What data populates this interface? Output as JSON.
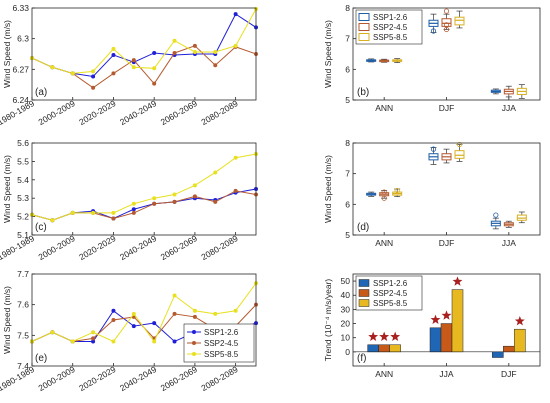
{
  "chart_data": [
    {
      "id": "a",
      "type": "line",
      "panel_label": "(a)",
      "ylabel": "Wind Speed (m/s)",
      "x": [
        1985,
        1995,
        2005,
        2015,
        2025,
        2035,
        2045,
        2055,
        2065,
        2075,
        2085,
        2095
      ],
      "xticks": [
        1985,
        2005,
        2025,
        2045,
        2065,
        2085
      ],
      "xticklabels": [
        "1980-1989",
        "2000-2009",
        "2020-2029",
        "2040-2049",
        "2060-2069",
        "2080-2089"
      ],
      "xlim": [
        1985,
        2095
      ],
      "ylim": [
        6.24,
        6.33
      ],
      "yticks": [
        6.24,
        6.27,
        6.3,
        6.33
      ],
      "yticklabels": [
        "6.24",
        "6.27",
        "6.3",
        "6.33"
      ],
      "legend": null,
      "series": [
        {
          "values": [
            6.281,
            6.272,
            6.266,
            6.263,
            6.284,
            6.277,
            6.286,
            6.284,
            6.285,
            6.285,
            6.324,
            6.311
          ],
          "color": "#1f1fd8"
        },
        {
          "values": [
            6.281,
            6.272,
            6.266,
            6.252,
            6.266,
            6.279,
            6.256,
            6.286,
            6.293,
            6.274,
            6.292,
            6.285
          ],
          "color": "#b55a30"
        },
        {
          "values": [
            6.281,
            6.272,
            6.266,
            6.268,
            6.29,
            6.272,
            6.271,
            6.298,
            6.287,
            6.287,
            6.293,
            6.329
          ],
          "color": "#e8e020"
        }
      ]
    },
    {
      "id": "b",
      "type": "box",
      "panel_label": "(b)",
      "ylabel": "Wind Speed (m/s)",
      "categories": [
        "ANN",
        "DJF",
        "JJA"
      ],
      "ylim": [
        5,
        8
      ],
      "yticks": [
        5,
        6,
        7,
        8
      ],
      "yticklabels": [
        "5",
        "6",
        "7",
        "8"
      ],
      "legend": [
        "SSP1-2.6",
        "SSP2-4.5",
        "SSP5-8.5"
      ],
      "series": [
        {
          "name": "SSP1-2.6",
          "color": "#1f5fa8",
          "boxes": [
            {
              "min": 6.24,
              "q1": 6.27,
              "median": 6.29,
              "q3": 6.31,
              "max": 6.34,
              "outliers": []
            },
            {
              "min": 7.2,
              "q1": 7.4,
              "median": 7.5,
              "q3": 7.6,
              "max": 7.8,
              "outliers": [
                7.25
              ]
            },
            {
              "min": 5.2,
              "q1": 5.25,
              "median": 5.28,
              "q3": 5.32,
              "max": 5.36,
              "outliers": []
            }
          ]
        },
        {
          "name": "SSP2-4.5",
          "color": "#b55a30",
          "boxes": [
            {
              "min": 6.23,
              "q1": 6.26,
              "median": 6.28,
              "q3": 6.3,
              "max": 6.33,
              "outliers": []
            },
            {
              "min": 7.3,
              "q1": 7.4,
              "median": 7.5,
              "q3": 7.65,
              "max": 7.8,
              "outliers": [
                7.3,
                7.45,
                7.9
              ]
            },
            {
              "min": 5.1,
              "q1": 5.2,
              "median": 5.28,
              "q3": 5.35,
              "max": 5.45,
              "outliers": []
            }
          ]
        },
        {
          "name": "SSP5-8.5",
          "color": "#d8b020",
          "boxes": [
            {
              "min": 6.22,
              "q1": 6.26,
              "median": 6.28,
              "q3": 6.31,
              "max": 6.35,
              "outliers": []
            },
            {
              "min": 7.35,
              "q1": 7.45,
              "median": 7.6,
              "q3": 7.7,
              "max": 7.9,
              "outliers": []
            },
            {
              "min": 5.05,
              "q1": 5.18,
              "median": 5.28,
              "q3": 5.38,
              "max": 5.5,
              "outliers": []
            }
          ]
        }
      ]
    },
    {
      "id": "c",
      "type": "line",
      "panel_label": "(c)",
      "ylabel": "Wind Speed (m/s)",
      "x": [
        1985,
        1995,
        2005,
        2015,
        2025,
        2035,
        2045,
        2055,
        2065,
        2075,
        2085,
        2095
      ],
      "xticks": [
        1985,
        2005,
        2025,
        2045,
        2065,
        2085
      ],
      "xticklabels": [
        "1980-1989",
        "2000-2009",
        "2020-2029",
        "2040-2049",
        "2060-2069",
        "2080-2089"
      ],
      "xlim": [
        1985,
        2095
      ],
      "ylim": [
        5.1,
        5.6
      ],
      "yticks": [
        5.1,
        5.2,
        5.3,
        5.4,
        5.5,
        5.6
      ],
      "yticklabels": [
        "5.1",
        "5.2",
        "5.3",
        "5.4",
        "5.5",
        "5.6"
      ],
      "legend": null,
      "series": [
        {
          "values": [
            5.21,
            5.18,
            5.22,
            5.23,
            5.19,
            5.24,
            5.27,
            5.28,
            5.3,
            5.29,
            5.33,
            5.35
          ],
          "color": "#1f1fd8"
        },
        {
          "values": [
            5.21,
            5.18,
            5.22,
            5.22,
            5.19,
            5.22,
            5.27,
            5.28,
            5.31,
            5.28,
            5.34,
            5.32
          ],
          "color": "#b55a30"
        },
        {
          "values": [
            5.21,
            5.18,
            5.22,
            5.22,
            5.22,
            5.27,
            5.3,
            5.32,
            5.37,
            5.44,
            5.52,
            5.54
          ],
          "color": "#e8e020"
        }
      ]
    },
    {
      "id": "d",
      "type": "box",
      "panel_label": "(d)",
      "ylabel": "Wind Speed (m/s)",
      "categories": [
        "ANN",
        "DJF",
        "JJA"
      ],
      "ylim": [
        5,
        8
      ],
      "yticks": [
        5,
        6,
        7,
        8
      ],
      "yticklabels": [
        "5",
        "6",
        "7",
        "8"
      ],
      "legend": null,
      "series": [
        {
          "name": "SSP1-2.6",
          "color": "#1f5fa8",
          "boxes": [
            {
              "min": 6.26,
              "q1": 6.3,
              "median": 6.33,
              "q3": 6.36,
              "max": 6.4,
              "outliers": []
            },
            {
              "min": 7.3,
              "q1": 7.45,
              "median": 7.55,
              "q3": 7.65,
              "max": 7.85,
              "outliers": [
                7.8
              ]
            },
            {
              "min": 5.2,
              "q1": 5.3,
              "median": 5.38,
              "q3": 5.45,
              "max": 5.55,
              "outliers": [
                5.65
              ]
            }
          ]
        },
        {
          "name": "SSP2-4.5",
          "color": "#b55a30",
          "boxes": [
            {
              "min": 6.2,
              "q1": 6.28,
              "median": 6.33,
              "q3": 6.38,
              "max": 6.45,
              "outliers": [
                6.2,
                6.4
              ]
            },
            {
              "min": 7.35,
              "q1": 7.45,
              "median": 7.55,
              "q3": 7.65,
              "max": 7.8,
              "outliers": []
            },
            {
              "min": 5.25,
              "q1": 5.3,
              "median": 5.35,
              "q3": 5.4,
              "max": 5.45,
              "outliers": []
            }
          ]
        },
        {
          "name": "SSP5-8.5",
          "color": "#d8b020",
          "boxes": [
            {
              "min": 6.25,
              "q1": 6.3,
              "median": 6.35,
              "q3": 6.4,
              "max": 6.5,
              "outliers": [
                6.45
              ]
            },
            {
              "min": 7.4,
              "q1": 7.5,
              "median": 7.6,
              "q3": 7.75,
              "max": 7.95,
              "outliers": [
                7.95
              ]
            },
            {
              "min": 5.4,
              "q1": 5.48,
              "median": 5.55,
              "q3": 5.65,
              "max": 5.75,
              "outliers": []
            }
          ]
        }
      ]
    },
    {
      "id": "e",
      "type": "line",
      "panel_label": "(e)",
      "ylabel": "Wind Speed (m/s)",
      "x": [
        1985,
        1995,
        2005,
        2015,
        2025,
        2035,
        2045,
        2055,
        2065,
        2075,
        2085,
        2095
      ],
      "xticks": [
        1985,
        2005,
        2025,
        2045,
        2065,
        2085
      ],
      "xticklabels": [
        "1980-1989",
        "2000-2009",
        "2020-2029",
        "2040-2049",
        "2060-2069",
        "2080-2089"
      ],
      "xlim": [
        1985,
        2095
      ],
      "ylim": [
        7.4,
        7.7
      ],
      "yticks": [
        7.4,
        7.5,
        7.6,
        7.7
      ],
      "yticklabels": [
        "7.4",
        "7.5",
        "7.6",
        "7.7"
      ],
      "legend": [
        "SSP1-2.6",
        "SSP2-4.5",
        "SSP5-8.5"
      ],
      "series": [
        {
          "name": "SSP1-2.6",
          "values": [
            7.48,
            7.51,
            7.48,
            7.48,
            7.58,
            7.53,
            7.54,
            7.48,
            7.51,
            7.51,
            7.52,
            7.54
          ],
          "color": "#1f1fd8"
        },
        {
          "name": "SSP2-4.5",
          "values": [
            7.48,
            7.51,
            7.48,
            7.49,
            7.55,
            7.56,
            7.49,
            7.57,
            7.56,
            7.52,
            7.53,
            7.6
          ],
          "color": "#b55a30"
        },
        {
          "name": "SSP5-8.5",
          "values": [
            7.48,
            7.51,
            7.48,
            7.51,
            7.48,
            7.57,
            7.48,
            7.63,
            7.58,
            7.57,
            7.58,
            7.67
          ],
          "color": "#e8e020"
        }
      ]
    },
    {
      "id": "f",
      "type": "bar",
      "panel_label": "(f)",
      "ylabel": "Trend (10⁻⁴ m/s/year)",
      "categories": [
        "ANN",
        "JJA",
        "DJF"
      ],
      "ylim": [
        -10,
        55
      ],
      "yticks": [
        0,
        10,
        20,
        30,
        40,
        50
      ],
      "yticklabels": [
        "0",
        "10",
        "20",
        "30",
        "40",
        "50"
      ],
      "legend": [
        "SSP1-2.6",
        "SSP2-4.5",
        "SSP5-8.5"
      ],
      "series": [
        {
          "name": "SSP1-2.6",
          "values": [
            5,
            17,
            -4
          ],
          "color": "#1f66b5",
          "significant": [
            true,
            true,
            false
          ]
        },
        {
          "name": "SSP2-4.5",
          "values": [
            5,
            20,
            4
          ],
          "color": "#c75a18",
          "significant": [
            true,
            true,
            false
          ]
        },
        {
          "name": "SSP5-8.5",
          "values": [
            5,
            44,
            16
          ],
          "color": "#e8b820",
          "significant": [
            true,
            true,
            true
          ]
        }
      ],
      "marker_color": "#a82020"
    }
  ]
}
